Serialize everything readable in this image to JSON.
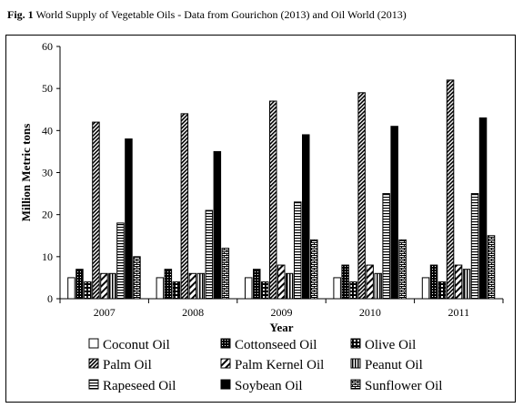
{
  "title_prefix": "Fig. 1",
  "title_text": "World Supply of Vegetable Oils - Data from Gourichon (2013) and Oil World (2013)",
  "chart_data": {
    "type": "bar",
    "title": "Fig. 1 World Supply of Vegetable Oils - Data from Gourichon (2013) and Oil World (2013)",
    "xlabel": "Year",
    "ylabel": "Million Metric tons",
    "categories": [
      "2007",
      "2008",
      "2009",
      "2010",
      "2011"
    ],
    "ylim": [
      0,
      60
    ],
    "yticks": [
      0,
      10,
      20,
      30,
      40,
      50,
      60
    ],
    "grid": false,
    "legend_position": "bottom",
    "series": [
      {
        "name": "Coconut Oil",
        "pattern": "white",
        "values": [
          5,
          5,
          5,
          5,
          5
        ]
      },
      {
        "name": "Cottonseed Oil",
        "pattern": "dots",
        "values": [
          7,
          7,
          7,
          8,
          8
        ]
      },
      {
        "name": "Olive Oil",
        "pattern": "grid",
        "values": [
          4,
          4,
          4,
          4,
          4
        ]
      },
      {
        "name": "Palm Oil",
        "pattern": "diag-dense",
        "values": [
          42,
          44,
          47,
          49,
          52
        ]
      },
      {
        "name": "Palm Kernel Oil",
        "pattern": "diag-wide",
        "values": [
          6,
          6,
          8,
          8,
          8
        ]
      },
      {
        "name": "Peanut Oil",
        "pattern": "vlines",
        "values": [
          6,
          6,
          6,
          6,
          7
        ]
      },
      {
        "name": "Rapeseed Oil",
        "pattern": "hlines",
        "values": [
          18,
          21,
          23,
          25,
          25
        ]
      },
      {
        "name": "Soybean Oil",
        "pattern": "black",
        "values": [
          38,
          35,
          39,
          41,
          43
        ]
      },
      {
        "name": "Sunflower Oil",
        "pattern": "brick",
        "values": [
          10,
          12,
          14,
          14,
          15
        ]
      }
    ]
  }
}
